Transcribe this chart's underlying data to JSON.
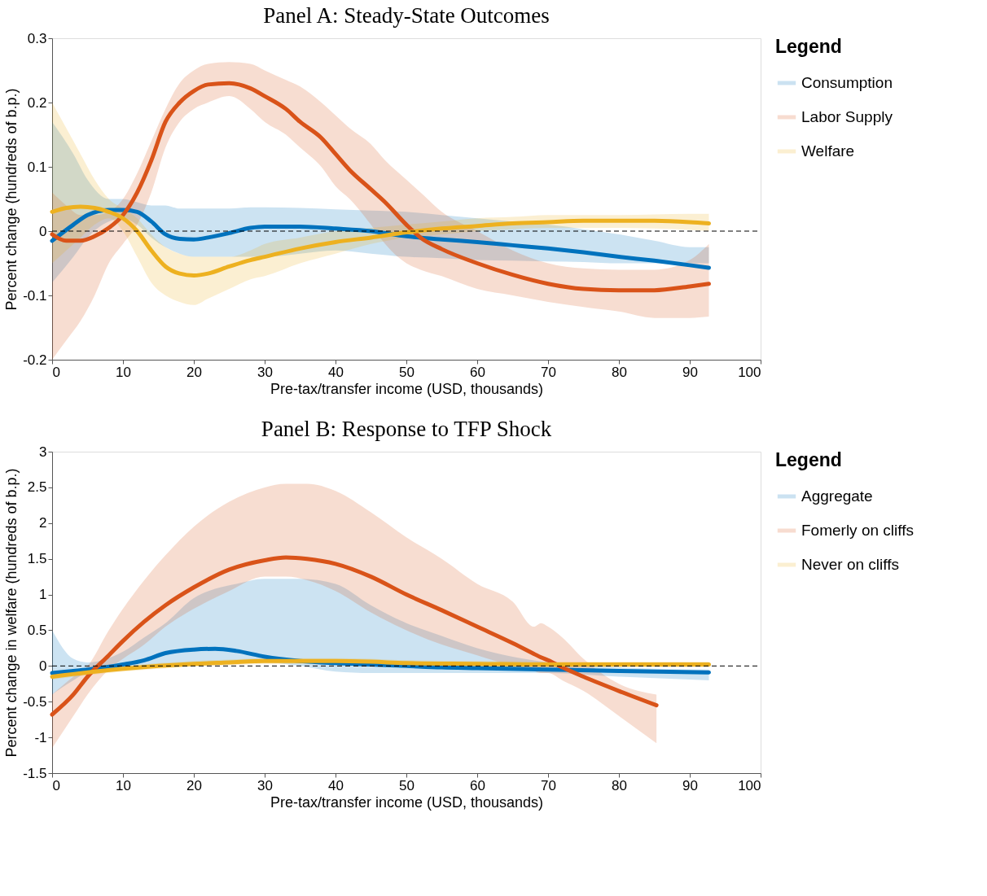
{
  "chart_data": [
    {
      "type": "line",
      "title": "Panel A: Steady-State Outcomes",
      "xlabel": "Pre-tax/transfer income (USD, thousands)",
      "ylabel": "Percent change (hundreds of b.p.)",
      "legend_title": "Legend",
      "legend": "right",
      "grid": false,
      "xlim": [
        0,
        100
      ],
      "xticks": [
        0,
        10,
        20,
        30,
        40,
        50,
        60,
        70,
        80,
        90,
        100
      ],
      "ylim": [
        -0.2,
        0.3
      ],
      "yticks": [
        -0.2,
        -0.1,
        0,
        0.1,
        0.2,
        0.3
      ],
      "ref_lines": [
        {
          "axis": "y",
          "value": 0,
          "line_style": "dashed",
          "color": "#000000"
        }
      ],
      "series": [
        {
          "name": "Consumption",
          "color": "#0072bd",
          "x": [
            0,
            3,
            5,
            8,
            10,
            12,
            14,
            16,
            18,
            20,
            22,
            25,
            28,
            30,
            35,
            40,
            45,
            50,
            55,
            60,
            65,
            70,
            75,
            80,
            85,
            90,
            92.7
          ],
          "values": [
            -0.015,
            0.01,
            0.025,
            0.033,
            0.033,
            0.03,
            0.015,
            -0.005,
            -0.012,
            -0.013,
            -0.01,
            -0.003,
            0.005,
            0.007,
            0.007,
            0.004,
            0.0,
            -0.008,
            -0.013,
            -0.017,
            -0.022,
            -0.027,
            -0.033,
            -0.04,
            -0.046,
            -0.053,
            -0.057
          ],
          "lower": [
            -0.08,
            -0.04,
            -0.01,
            0.015,
            0.02,
            0.01,
            -0.01,
            -0.025,
            -0.035,
            -0.04,
            -0.04,
            -0.04,
            -0.04,
            -0.04,
            -0.035,
            -0.03,
            -0.035,
            -0.04,
            -0.042,
            -0.045,
            -0.046,
            -0.047,
            -0.048,
            -0.05,
            -0.05,
            -0.05,
            -0.05
          ],
          "upper": [
            0.17,
            0.12,
            0.08,
            0.05,
            0.05,
            0.045,
            0.04,
            0.04,
            0.035,
            0.035,
            0.035,
            0.035,
            0.037,
            0.037,
            0.036,
            0.034,
            0.032,
            0.03,
            0.025,
            0.02,
            0.015,
            0.01,
            0.003,
            -0.005,
            -0.015,
            -0.025,
            -0.025
          ]
        },
        {
          "name": "Labor Supply",
          "color": "#d95319",
          "x": [
            0,
            2,
            4,
            6,
            8,
            10,
            12,
            14,
            16,
            18,
            20,
            22,
            25,
            28,
            30,
            33,
            35,
            38,
            40,
            42,
            45,
            47,
            50,
            52,
            55,
            60,
            65,
            70,
            75,
            80,
            85,
            90,
            92.7
          ],
          "values": [
            -0.005,
            -0.015,
            -0.015,
            -0.008,
            0.005,
            0.025,
            0.06,
            0.11,
            0.17,
            0.2,
            0.218,
            0.228,
            0.23,
            0.222,
            0.21,
            0.19,
            0.17,
            0.145,
            0.12,
            0.095,
            0.065,
            0.045,
            0.01,
            -0.01,
            -0.028,
            -0.05,
            -0.068,
            -0.082,
            -0.09,
            -0.092,
            -0.092,
            -0.086,
            -0.082
          ],
          "lower": [
            -0.2,
            -0.17,
            -0.14,
            -0.1,
            -0.05,
            -0.02,
            0.01,
            0.06,
            0.13,
            0.17,
            0.19,
            0.2,
            0.21,
            0.19,
            0.17,
            0.15,
            0.13,
            0.1,
            0.07,
            0.05,
            0.01,
            -0.02,
            -0.05,
            -0.06,
            -0.07,
            -0.09,
            -0.1,
            -0.11,
            -0.118,
            -0.125,
            -0.135,
            -0.135,
            -0.133
          ],
          "upper": [
            0.06,
            0.04,
            0.025,
            0.025,
            0.03,
            0.05,
            0.09,
            0.14,
            0.19,
            0.23,
            0.25,
            0.26,
            0.263,
            0.26,
            0.25,
            0.235,
            0.225,
            0.2,
            0.18,
            0.16,
            0.135,
            0.11,
            0.08,
            0.06,
            0.03,
            0.0,
            -0.03,
            -0.05,
            -0.058,
            -0.06,
            -0.06,
            -0.045,
            -0.02
          ]
        },
        {
          "name": "Welfare",
          "color": "#edb120",
          "x": [
            0,
            2,
            4,
            6,
            8,
            10,
            12,
            14,
            16,
            18,
            20,
            22,
            25,
            28,
            30,
            35,
            40,
            45,
            50,
            55,
            60,
            65,
            70,
            75,
            80,
            85,
            90,
            92.7
          ],
          "values": [
            0.03,
            0.036,
            0.038,
            0.036,
            0.03,
            0.02,
            0.0,
            -0.03,
            -0.055,
            -0.066,
            -0.069,
            -0.066,
            -0.055,
            -0.045,
            -0.04,
            -0.027,
            -0.017,
            -0.01,
            -0.002,
            0.004,
            0.008,
            0.012,
            0.014,
            0.016,
            0.016,
            0.016,
            0.014,
            0.012
          ],
          "lower": [
            -0.05,
            -0.03,
            -0.01,
            0.01,
            0.02,
            0.0,
            -0.04,
            -0.08,
            -0.1,
            -0.11,
            -0.115,
            -0.105,
            -0.09,
            -0.075,
            -0.07,
            -0.05,
            -0.035,
            -0.02,
            -0.01,
            -0.005,
            0.0,
            0.003,
            0.005,
            0.005,
            0.005,
            0.004,
            0.002,
            0.0
          ],
          "upper": [
            0.2,
            0.16,
            0.12,
            0.08,
            0.05,
            0.035,
            0.02,
            -0.005,
            -0.025,
            -0.035,
            -0.04,
            -0.04,
            -0.04,
            -0.03,
            -0.02,
            -0.01,
            0.0,
            0.005,
            0.01,
            0.015,
            0.02,
            0.022,
            0.025,
            0.025,
            0.025,
            0.026,
            0.027,
            0.027
          ]
        }
      ]
    },
    {
      "type": "line",
      "title": "Panel B: Response to TFP Shock",
      "xlabel": "Pre-tax/transfer income (USD, thousands)",
      "ylabel": "Percent change in welfare (hundreds of b.p.)",
      "legend_title": "Legend",
      "legend": "right",
      "grid": false,
      "xlim": [
        0,
        100
      ],
      "xticks": [
        0,
        10,
        20,
        30,
        40,
        50,
        60,
        70,
        80,
        90,
        100
      ],
      "ylim": [
        -1.5,
        3
      ],
      "yticks": [
        -1.5,
        -1,
        -0.5,
        0,
        0.5,
        1,
        1.5,
        2,
        2.5,
        3
      ],
      "ref_lines": [
        {
          "axis": "y",
          "value": 0,
          "line_style": "dashed",
          "color": "#000000"
        }
      ],
      "series": [
        {
          "name": "Aggregate",
          "color": "#0072bd",
          "x": [
            0,
            3,
            5,
            10,
            13,
            16,
            20,
            23,
            26,
            30,
            35,
            40,
            45,
            50,
            55,
            60,
            70,
            80,
            92.7
          ],
          "values": [
            -0.1,
            -0.07,
            -0.05,
            0.02,
            0.08,
            0.18,
            0.23,
            0.24,
            0.21,
            0.13,
            0.07,
            0.04,
            0.02,
            0.0,
            -0.02,
            -0.03,
            -0.05,
            -0.07,
            -0.09
          ],
          "lower": [
            -0.4,
            -0.2,
            -0.1,
            -0.05,
            -0.02,
            0.0,
            0.02,
            0.04,
            0.05,
            0.05,
            0.0,
            -0.08,
            -0.1,
            -0.1,
            -0.1,
            -0.1,
            -0.1,
            -0.15,
            -0.2
          ],
          "upper": [
            0.5,
            0.1,
            0.05,
            0.2,
            0.4,
            0.6,
            0.95,
            1.08,
            1.15,
            1.22,
            1.22,
            1.15,
            0.85,
            0.6,
            0.42,
            0.25,
            0.05,
            -0.02,
            -0.05
          ]
        },
        {
          "name": "Fomerly on cliffs",
          "color": "#d95319",
          "x": [
            0,
            3,
            5,
            8,
            10,
            13,
            16,
            20,
            25,
            30,
            33,
            36,
            40,
            45,
            50,
            55,
            60,
            65,
            68,
            69,
            70,
            72,
            75,
            80,
            85.3
          ],
          "values": [
            -0.68,
            -0.4,
            -0.15,
            0.15,
            0.35,
            0.62,
            0.85,
            1.1,
            1.35,
            1.48,
            1.52,
            1.5,
            1.43,
            1.25,
            1.0,
            0.78,
            0.55,
            0.32,
            0.17,
            0.12,
            0.08,
            -0.02,
            -0.15,
            -0.35,
            -0.55
          ],
          "lower": [
            -1.15,
            -0.7,
            -0.4,
            -0.05,
            0.1,
            0.3,
            0.55,
            0.8,
            1.05,
            1.25,
            1.25,
            1.2,
            1.05,
            0.75,
            0.5,
            0.3,
            0.15,
            0.0,
            -0.07,
            -0.1,
            -0.1,
            -0.2,
            -0.35,
            -0.7,
            -1.08
          ],
          "upper": [
            -0.4,
            -0.15,
            0.0,
            0.5,
            0.8,
            1.2,
            1.55,
            1.95,
            2.3,
            2.5,
            2.55,
            2.55,
            2.45,
            2.15,
            1.8,
            1.5,
            1.15,
            0.9,
            0.55,
            0.6,
            0.55,
            0.4,
            0.1,
            -0.25,
            -0.4
          ]
        },
        {
          "name": "Never on cliffs",
          "color": "#edb120",
          "x": [
            0,
            5,
            10,
            15,
            20,
            25,
            30,
            35,
            40,
            45,
            50,
            60,
            70,
            80,
            92.7
          ],
          "values": [
            -0.15,
            -0.09,
            -0.04,
            0.0,
            0.03,
            0.05,
            0.07,
            0.07,
            0.07,
            0.06,
            0.04,
            0.03,
            0.02,
            0.02,
            0.02
          ],
          "lower": [
            -0.19,
            -0.13,
            -0.08,
            -0.04,
            -0.01,
            0.01,
            0.03,
            0.03,
            0.03,
            0.02,
            0.0,
            -0.01,
            -0.02,
            -0.02,
            -0.02
          ],
          "upper": [
            -0.11,
            -0.05,
            0.0,
            0.04,
            0.07,
            0.09,
            0.11,
            0.11,
            0.11,
            0.1,
            0.08,
            0.07,
            0.06,
            0.06,
            0.06
          ]
        }
      ]
    }
  ]
}
